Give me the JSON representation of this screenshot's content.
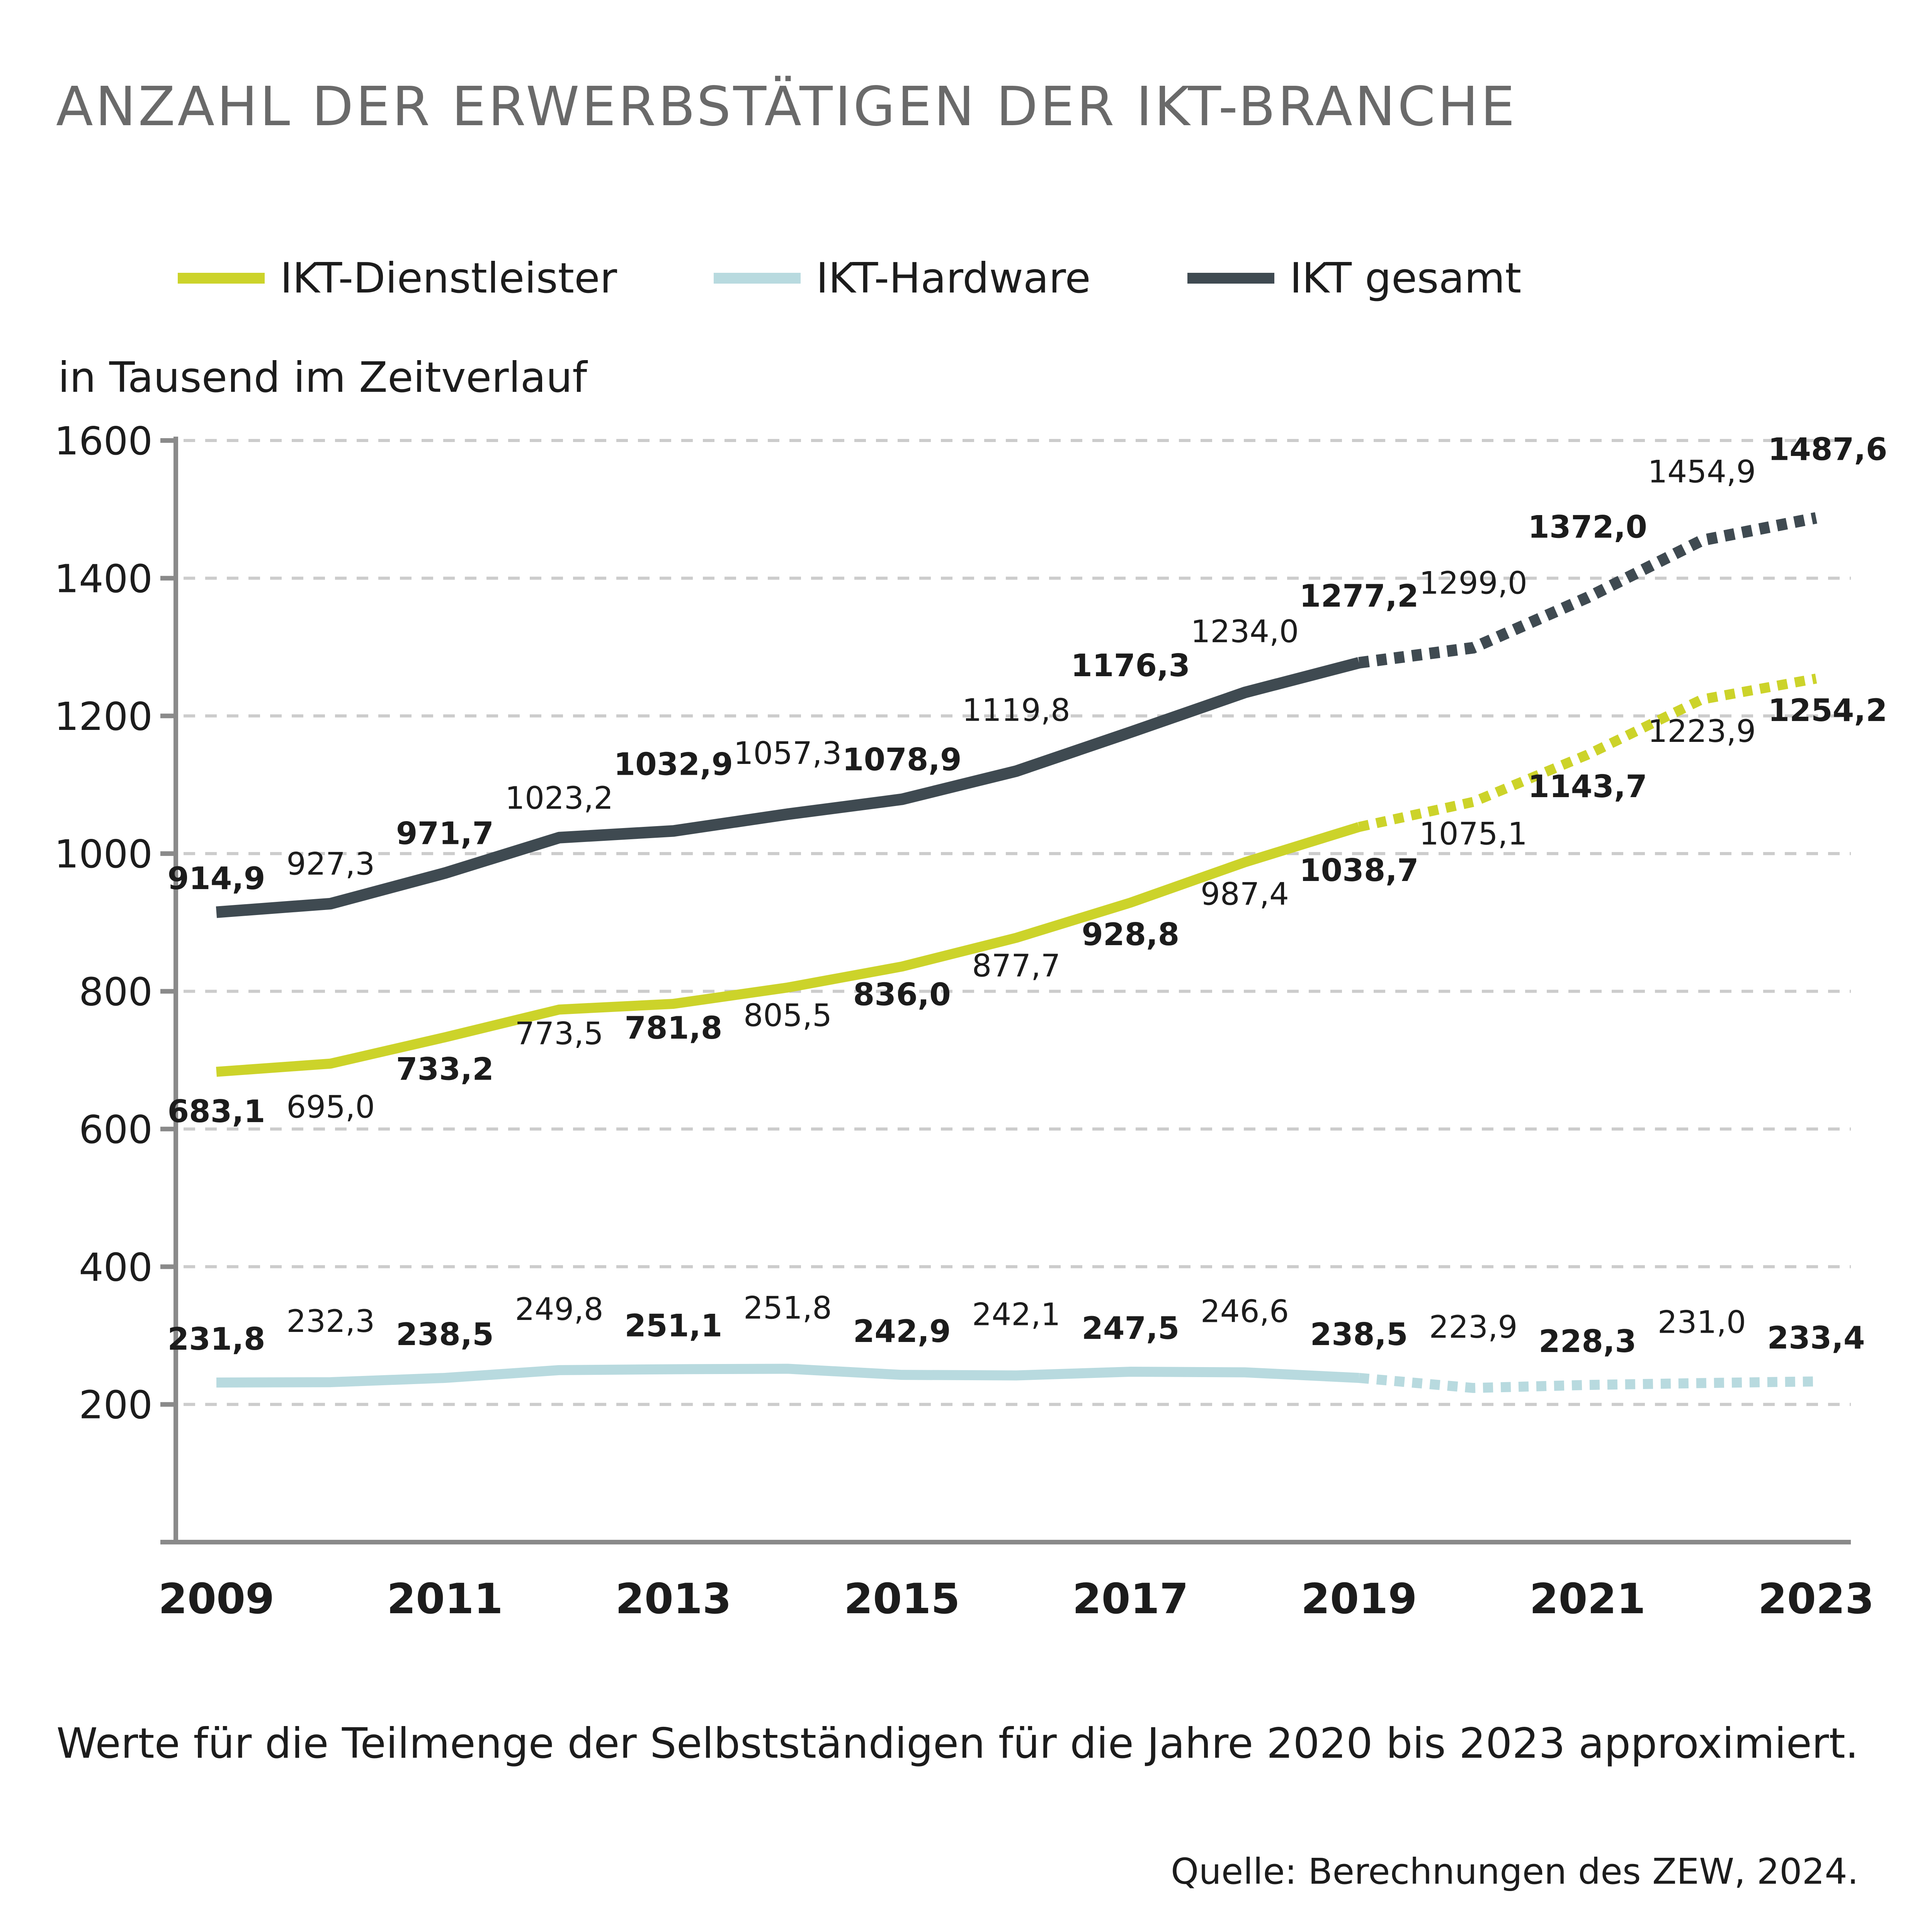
{
  "chart_data": {
    "type": "line",
    "title": "ANZAHL DER ERWERBSTÄTIGEN DER IKT-BRANCHE",
    "subtitle": "in Tausend im Zeitverlauf",
    "xlabel": "",
    "ylabel": "in Tausend im Zeitverlauf",
    "x": [
      2009,
      2010,
      2011,
      2012,
      2013,
      2014,
      2015,
      2016,
      2017,
      2018,
      2019,
      2020,
      2021,
      2022,
      2023
    ],
    "x_tick_labels": [
      "2009",
      "2011",
      "2013",
      "2015",
      "2017",
      "2019",
      "2021",
      "2023"
    ],
    "y_tick_labels": [
      "200",
      "400",
      "600",
      "800",
      "1000",
      "1200",
      "1400",
      "1600"
    ],
    "ylim": [
      0,
      1600
    ],
    "grid": "horizontal dashed",
    "legend_position": "top-left",
    "projection_from": 2019,
    "series": [
      {
        "name": "IKT-Dienstleister",
        "color": "#ccd32a",
        "values": [
          683.1,
          695.0,
          733.2,
          773.5,
          781.8,
          805.5,
          836.0,
          877.7,
          928.8,
          987.4,
          1038.7,
          1075.1,
          1143.7,
          1223.9,
          1254.2
        ],
        "labels": [
          "683,1",
          "695,0",
          "733,2",
          "773,5",
          "781,8",
          "805,5",
          "836,0",
          "877,7",
          "928,8",
          "987,4",
          "1038,7",
          "1075,1",
          "1143,7",
          "1223,9",
          "1254,2"
        ]
      },
      {
        "name": "IKT-Hardware",
        "color": "#b8dadf",
        "values": [
          231.8,
          232.3,
          238.5,
          249.8,
          251.1,
          251.8,
          242.9,
          242.1,
          247.5,
          246.6,
          238.5,
          223.9,
          228.3,
          231.0,
          233.4
        ],
        "labels": [
          "231,8",
          "232,3",
          "238,5",
          "249,8",
          "251,1",
          "251,8",
          "242,9",
          "242,1",
          "247,5",
          "246,6",
          "238,5",
          "223,9",
          "228,3",
          "231,0",
          "233,4"
        ]
      },
      {
        "name": "IKT gesamt",
        "color": "#3f4a51",
        "values": [
          914.9,
          927.3,
          971.7,
          1023.2,
          1032.9,
          1057.3,
          1078.9,
          1119.8,
          1176.3,
          1234.0,
          1277.2,
          1299.0,
          1372.0,
          1454.9,
          1487.6
        ],
        "labels": [
          "914,9",
          "927,3",
          "971,7",
          "1023,2",
          "1032,9",
          "1057,3",
          "1078,9",
          "1119,8",
          "1176,3",
          "1234,0",
          "1277,2",
          "1299,0",
          "1372,0",
          "1454,9",
          "1487,6"
        ]
      }
    ],
    "note": "Werte für die Teilmenge der Selbstständigen für die Jahre 2020 bis 2023 approximiert.",
    "source": "Quelle: Berechnungen des ZEW, 2024."
  },
  "colors": {
    "title": "#6a6a6a",
    "axis": "#8a8a8a",
    "grid": "#cccccc",
    "text": "#1c1c1c"
  }
}
